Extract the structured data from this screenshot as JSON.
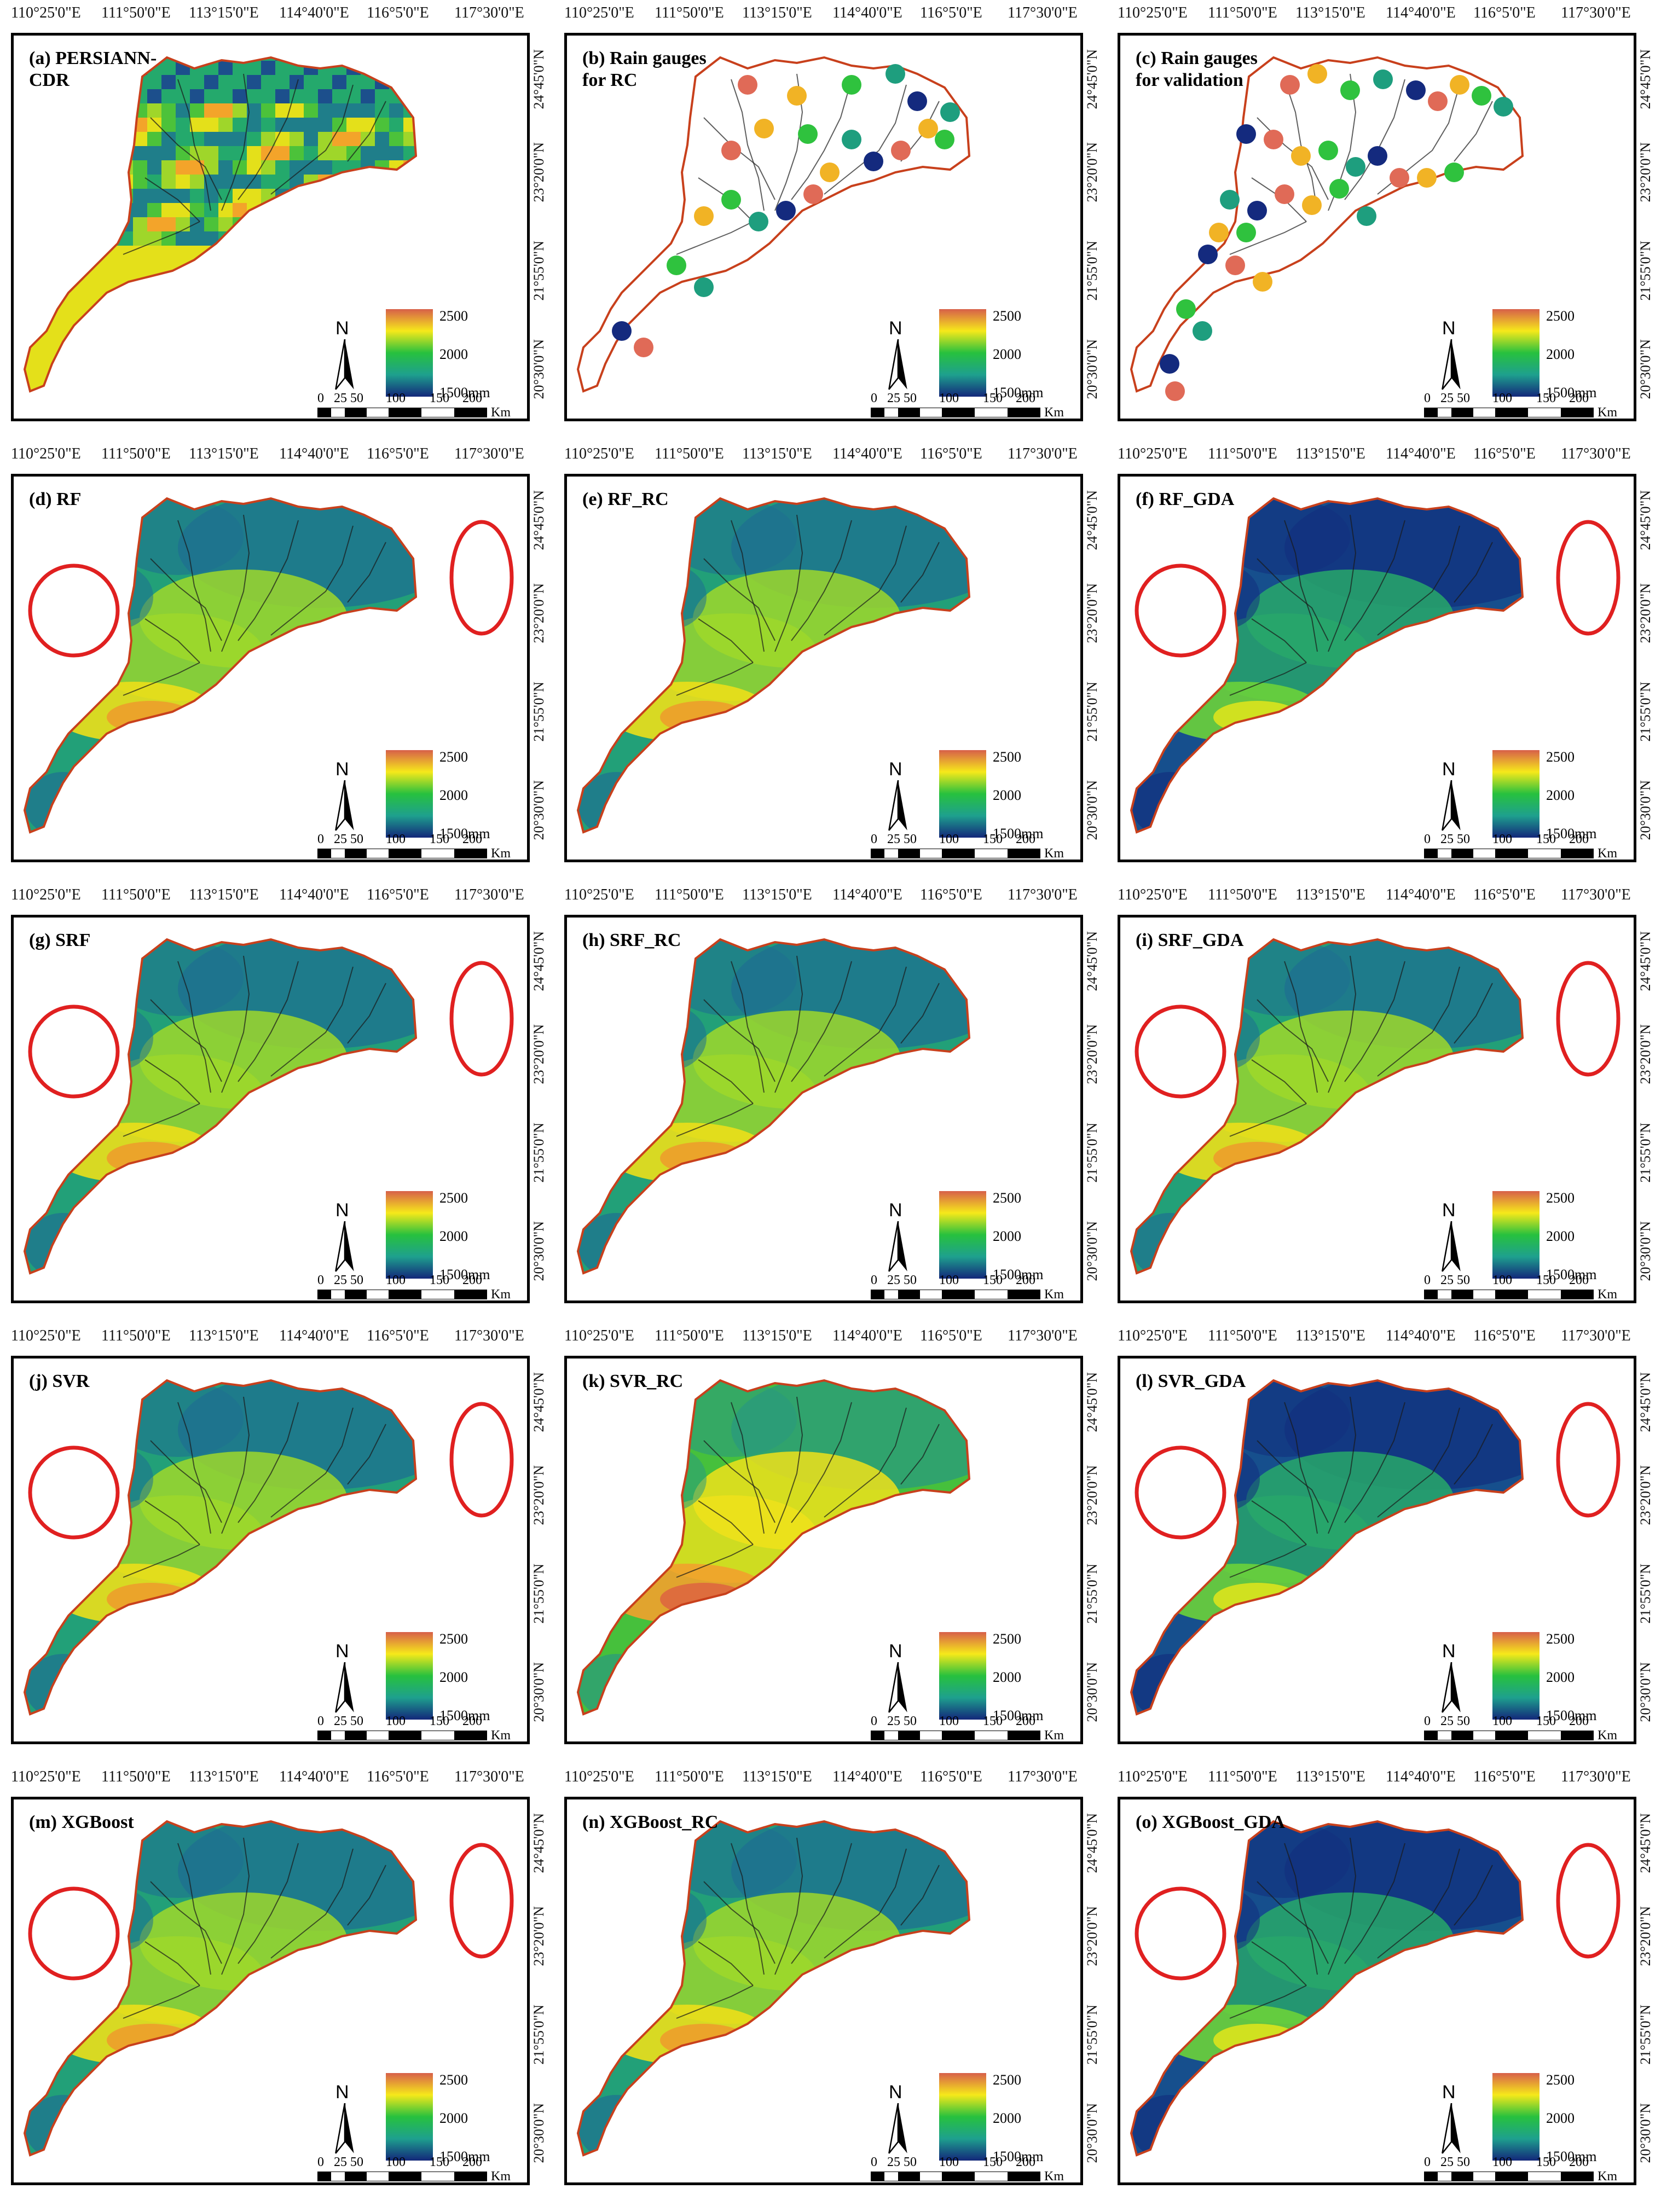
{
  "figure": {
    "x_ticks": [
      "110°25'0\"E",
      "111°50'0\"E",
      "113°15'0\"E",
      "114°40'0\"E",
      "116°5'0\"E",
      "117°30'0\"E"
    ],
    "y_ticks": [
      "24°45'0\"N",
      "23°20'0\"N",
      "21°55'0\"N",
      "20°30'0\"N"
    ],
    "legend": {
      "high": "2500",
      "mid": "2000",
      "low": "1500mm"
    },
    "legend_colors": [
      "#d7604a",
      "#f6e91a",
      "#27c13e",
      "#1ea08e",
      "#13277a"
    ],
    "north_label": "N",
    "scale": {
      "labels": [
        "0",
        "25",
        "50",
        "100",
        "150",
        "200"
      ],
      "unit": "Km"
    },
    "boundary_color": "#c8401c",
    "circle_color": "#e02020"
  },
  "panels": [
    {
      "id": "a",
      "title": "(a) PERSIANN-\n     CDR",
      "type": "pixel",
      "circles": false,
      "tone": "mid"
    },
    {
      "id": "b",
      "title": "(b) Rain gauges\n      for RC",
      "type": "gauges",
      "circles": false,
      "tone": "mid"
    },
    {
      "id": "c",
      "title": "(c) Rain gauges\n      for validation",
      "type": "gauges",
      "circles": false,
      "tone": "mid"
    },
    {
      "id": "d",
      "title": "(d) RF",
      "type": "surface",
      "circles": true,
      "tone": "mid"
    },
    {
      "id": "e",
      "title": "(e) RF_RC",
      "type": "surface",
      "circles": false,
      "tone": "mid"
    },
    {
      "id": "f",
      "title": "(f) RF_GDA",
      "type": "surface",
      "circles": true,
      "tone": "low"
    },
    {
      "id": "g",
      "title": "(g) SRF",
      "type": "surface",
      "circles": true,
      "tone": "mid"
    },
    {
      "id": "h",
      "title": "(h) SRF_RC",
      "type": "surface",
      "circles": false,
      "tone": "mid"
    },
    {
      "id": "i",
      "title": "(i) SRF_GDA",
      "type": "surface",
      "circles": true,
      "tone": "mid"
    },
    {
      "id": "j",
      "title": "(j) SVR",
      "type": "surface",
      "circles": true,
      "tone": "mid"
    },
    {
      "id": "k",
      "title": "(k) SVR_RC",
      "type": "surface",
      "circles": false,
      "tone": "high"
    },
    {
      "id": "l",
      "title": "(l) SVR_GDA",
      "type": "surface",
      "circles": true,
      "tone": "low"
    },
    {
      "id": "m",
      "title": "(m) XGBoost",
      "type": "surface",
      "circles": true,
      "tone": "mid"
    },
    {
      "id": "n",
      "title": "(n) XGBoost_RC",
      "type": "surface",
      "circles": false,
      "tone": "mid"
    },
    {
      "id": "o",
      "title": "(o) XGBoost_GDA",
      "type": "surface",
      "circles": true,
      "tone": "low"
    }
  ]
}
